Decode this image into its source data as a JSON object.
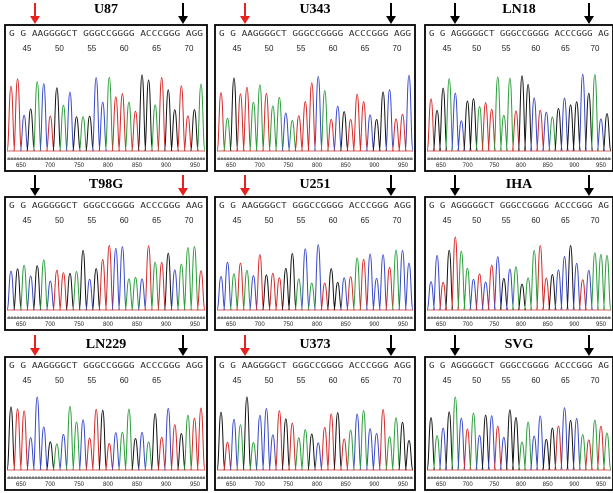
{
  "panels": [
    {
      "label": "U87",
      "sequence": "G G AAGGGGCT GGGCCGGGG ACCCGGG AGG",
      "positions": [
        "45",
        "50",
        "55",
        "60",
        "65",
        "70"
      ],
      "scale": [
        "650",
        "700",
        "750",
        "800",
        "850",
        "900",
        "950"
      ],
      "left_arrow": "#e8231f",
      "right_arrow": "#000000"
    },
    {
      "label": "U343",
      "sequence": "G G AAGGGGCT GGGCCGGGG ACCCGGG AGG",
      "positions": [
        "45",
        "50",
        "55",
        "60",
        "65",
        "70"
      ],
      "scale": [
        "650",
        "700",
        "750",
        "800",
        "850",
        "900",
        "950"
      ],
      "left_arrow": "#e8231f",
      "right_arrow": "#000000"
    },
    {
      "label": "LN18",
      "sequence": "G G AGGGGGCT GGGCCGGGG ACCCGGG AG",
      "positions": [
        "45",
        "50",
        "55",
        "60",
        "65",
        "70"
      ],
      "scale": [
        "650",
        "700",
        "750",
        "800",
        "850",
        "900",
        "950"
      ],
      "left_arrow": "#000000",
      "right_arrow": "#000000"
    },
    {
      "label": "T98G",
      "sequence": "G G AGGGGGCT GGGCCGGGG ACCCGGG AAG",
      "positions": [
        "45",
        "50",
        "55",
        "60",
        "65",
        "70"
      ],
      "scale": [
        "650",
        "700",
        "750",
        "800",
        "850",
        "900",
        "950"
      ],
      "left_arrow": "#000000",
      "right_arrow": "#e8231f"
    },
    {
      "label": "U251",
      "sequence": "G G AAGGGGCT GGGCCGGGG ACCCGGG AGG",
      "positions": [
        "45",
        "50",
        "55",
        "60",
        "65",
        "70"
      ],
      "scale": [
        "650",
        "700",
        "750",
        "800",
        "850",
        "900",
        "950"
      ],
      "left_arrow": "#e8231f",
      "right_arrow": "#000000"
    },
    {
      "label": "IHA",
      "sequence": "G G AGGGGGCT GGGCCGGGG ACCCGGG AG",
      "positions": [
        "45",
        "50",
        "55",
        "60",
        "65",
        "70"
      ],
      "scale": [
        "650",
        "700",
        "750",
        "800",
        "850",
        "900",
        "950"
      ],
      "left_arrow": "#000000",
      "right_arrow": "#000000"
    },
    {
      "label": "LN229",
      "sequence": "G G AAGGGGCT GGGCCGGGG ACCCGGG AGG",
      "positions": [
        "45",
        "50",
        "55",
        "60",
        "65"
      ],
      "scale": [
        "650",
        "700",
        "750",
        "800",
        "850",
        "900",
        "950"
      ],
      "left_arrow": "#e8231f",
      "right_arrow": "#000000"
    },
    {
      "label": "U373",
      "sequence": "G G AAGGGGCT GGGCCGGGG ACCCGGG AGG",
      "positions": [
        "45",
        "50",
        "55",
        "60",
        "65",
        "70"
      ],
      "scale": [
        "650",
        "700",
        "750",
        "800",
        "850",
        "900",
        "950"
      ],
      "left_arrow": "#e8231f",
      "right_arrow": "#000000"
    },
    {
      "label": "SVG",
      "sequence": "G G AGGGGGCT GGGCCGGGG ACCCGGG AG",
      "positions": [
        "45",
        "50",
        "55",
        "60",
        "65",
        "70"
      ],
      "scale": [
        "650",
        "700",
        "750",
        "800",
        "850",
        "900",
        "950"
      ],
      "left_arrow": "#000000",
      "right_arrow": "#000000"
    }
  ]
}
